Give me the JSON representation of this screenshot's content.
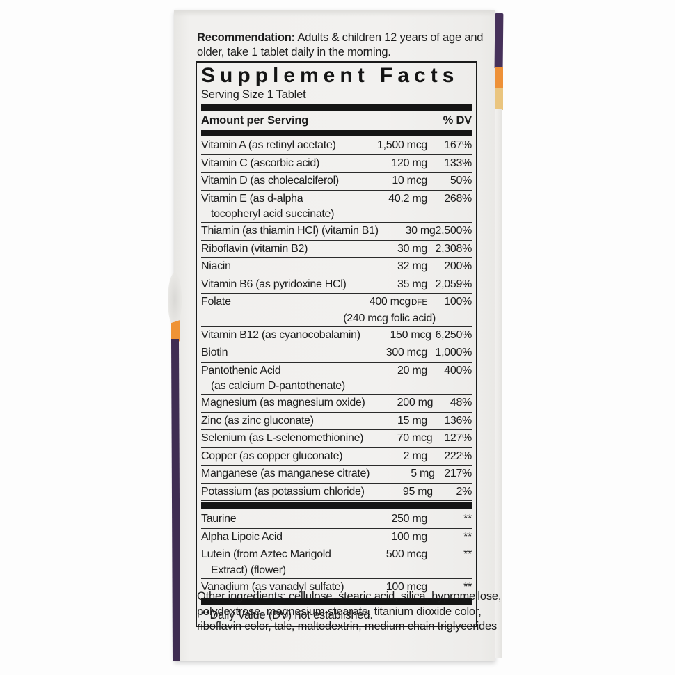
{
  "label": {
    "recommendation": {
      "bold": "Recommendation:",
      "line1_rest": " Adults & children 12 years of age and",
      "line2": "older, take 1 tablet daily in the morning."
    },
    "title": "Supplement Facts",
    "serving_size": "Serving Size 1 Tablet",
    "columns": {
      "amount": "Amount per Serving",
      "dv": "% DV"
    },
    "footnote": "**Daily Value (DV) not established.",
    "other_ingredients": {
      "line1": "Other ingredients: cellulose, stearic acid, silica, hypromellose,",
      "line2": "polydextrose, magnesium stearate, titanium dioxide color,",
      "line3": "riboflavin color, talc, maltodextrin, medium chain triglycerides"
    }
  },
  "sections": [
    {
      "rows": [
        {
          "name": "Vitamin A (as retinyl acetate)",
          "amount": "1,500 mcg",
          "dv": "167%"
        },
        {
          "name": "Vitamin C (ascorbic acid)",
          "amount": "120 mg",
          "dv": "133%"
        },
        {
          "name": "Vitamin D (as cholecalciferol)",
          "amount": "10 mcg",
          "dv": "50%"
        },
        {
          "name": "Vitamin E (as d-alpha",
          "name2": "tocopheryl acid succinate)",
          "amount": "40.2 mg",
          "dv": "268%"
        },
        {
          "name": "Thiamin (as thiamin HCl) (vitamin B1)",
          "amount": "30 mg",
          "dv": "2,500%"
        },
        {
          "name": "Riboflavin (vitamin B2)",
          "amount": "30 mg",
          "dv": "2,308%"
        },
        {
          "name": "Niacin",
          "amount": "32 mg",
          "dv": "200%"
        },
        {
          "name": "Vitamin B6 (as pyridoxine HCl)",
          "amount": "35 mg",
          "dv": "2,059%"
        },
        {
          "name": "Folate",
          "amount": "400 mcg",
          "amount_suffix": "DFE",
          "amount2": "(240 mcg folic acid)",
          "dv": "100%"
        },
        {
          "name": "Vitamin B12 (as cyanocobalamin)",
          "amount": "150 mcg",
          "dv": "6,250%"
        },
        {
          "name": "Biotin",
          "amount": "300 mcg",
          "dv": "1,000%"
        },
        {
          "name": "Pantothenic Acid",
          "name2": "(as calcium D-pantothenate)",
          "amount": "20 mg",
          "dv": "400%"
        },
        {
          "name": "Magnesium (as magnesium oxide)",
          "amount": "200 mg",
          "dv": "48%"
        },
        {
          "name": "Zinc (as zinc gluconate)",
          "amount": "15 mg",
          "dv": "136%"
        },
        {
          "name": "Selenium (as L-selenomethionine)",
          "amount": "70 mcg",
          "dv": "127%"
        },
        {
          "name": "Copper (as copper gluconate)",
          "amount": "2 mg",
          "dv": "222%"
        },
        {
          "name": "Manganese (as manganese citrate)",
          "amount": "5 mg",
          "dv": "217%"
        },
        {
          "name": "Potassium (as potassium chloride)",
          "amount": "95 mg",
          "dv": "2%"
        }
      ]
    },
    {
      "rows": [
        {
          "name": "Taurine",
          "amount": "250 mg",
          "dv": "**"
        },
        {
          "name": "Alpha Lipoic Acid",
          "amount": "100 mg",
          "dv": "**"
        },
        {
          "name": "Lutein (from Aztec Marigold",
          "name2": "Extract) (flower)",
          "amount": "500 mcg",
          "dv": "**"
        },
        {
          "name": "Vanadium (as vanadyl sulfate)",
          "amount": "100 mcg",
          "dv": "**"
        }
      ]
    }
  ],
  "colors": {
    "text": "#1c1c1c",
    "bars": "#151515",
    "package_face": "#f1f0ee",
    "edge_purple": "#46315a",
    "edge_orange": "#ee9138",
    "edge_tan": "#eac57f"
  }
}
